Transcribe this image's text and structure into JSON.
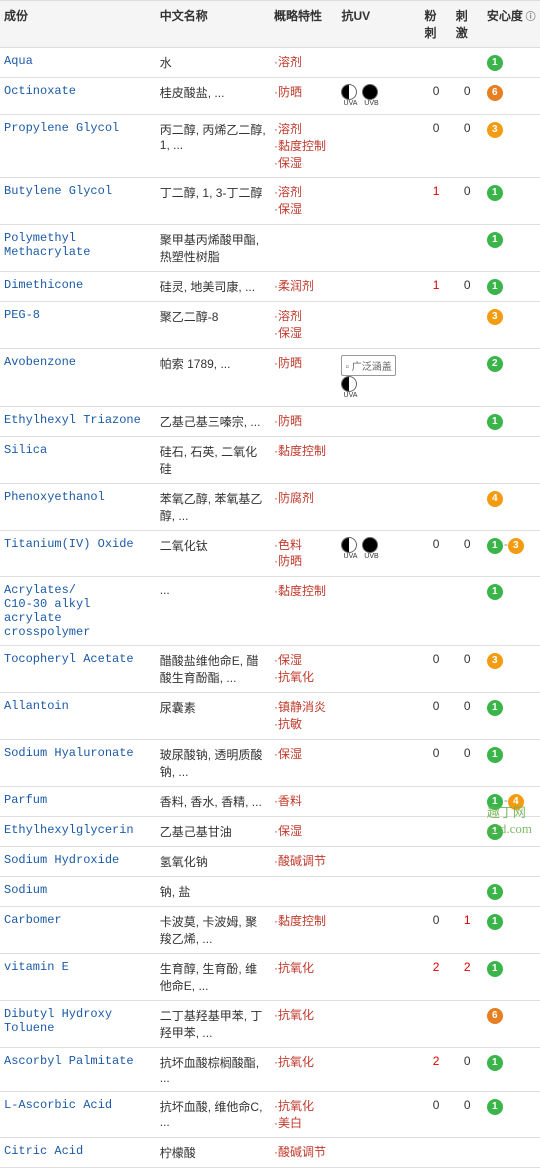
{
  "columns": [
    "成份",
    "中文名称",
    "概略特性",
    "抗UV",
    "粉刺",
    "刺激",
    "安心度"
  ],
  "watermark": "趣丁网\nq2d.com",
  "rows": [
    {
      "ing": "Aqua",
      "zh": "水",
      "char": [
        "溶剂"
      ],
      "uv": [],
      "come": "",
      "irr": "",
      "safety": [
        "1"
      ]
    },
    {
      "ing": "Octinoxate",
      "zh": "桂皮酸盐, ...",
      "char": [
        "防晒"
      ],
      "uv": [
        "half",
        "full"
      ],
      "come": "0",
      "irr": "0",
      "safety": [
        "6"
      ]
    },
    {
      "ing": "Propylene Glycol",
      "zh": "丙二醇, 丙烯乙二醇, 1, ...",
      "char": [
        "溶剂",
        "黏度控制",
        "保湿"
      ],
      "uv": [],
      "come": "0",
      "irr": "0",
      "safety": [
        "3"
      ]
    },
    {
      "ing": "Butylene Glycol",
      "zh": "丁二醇, 1, 3-丁二醇",
      "char": [
        "溶剂",
        "保湿"
      ],
      "uv": [],
      "come": "1",
      "come_red": true,
      "irr": "0",
      "safety": [
        "1"
      ]
    },
    {
      "ing": "Polymethyl Methacrylate",
      "zh": "聚甲基丙烯酸甲酯, 热塑性树脂",
      "char": [],
      "uv": [],
      "come": "",
      "irr": "",
      "safety": [
        "1"
      ]
    },
    {
      "ing": "Dimethicone",
      "zh": "硅灵, 地美司康, ...",
      "char": [
        "柔润剂"
      ],
      "uv": [],
      "come": "1",
      "come_red": true,
      "irr": "0",
      "safety": [
        "1"
      ]
    },
    {
      "ing": "PEG-8",
      "zh": "聚乙二醇-8",
      "char": [
        "溶剂",
        "保湿"
      ],
      "uv": [],
      "come": "",
      "irr": "",
      "safety": [
        "3"
      ]
    },
    {
      "ing": "Avobenzone",
      "zh": "帕索 1789, ...",
      "char": [
        "防晒"
      ],
      "uv": [
        "img",
        "half"
      ],
      "uvimg": "广泛涵盖",
      "come": "",
      "irr": "",
      "safety": [
        "2"
      ]
    },
    {
      "ing": "Ethylhexyl Triazone",
      "zh": "乙基己基三嗪宗, ...",
      "char": [
        "防晒"
      ],
      "uv": [],
      "come": "",
      "irr": "",
      "safety": [
        "1"
      ]
    },
    {
      "ing": "Silica",
      "zh": "硅石, 石英, 二氧化硅",
      "char": [
        "黏度控制"
      ],
      "uv": [],
      "come": "",
      "irr": "",
      "safety": []
    },
    {
      "ing": "Phenoxyethanol",
      "zh": "苯氧乙醇, 苯氧基乙醇, ...",
      "char": [
        "防腐剂"
      ],
      "uv": [],
      "come": "",
      "irr": "",
      "safety": [
        "4"
      ]
    },
    {
      "ing": "Titanium(IV) Oxide",
      "zh": "二氧化钛",
      "char": [
        "色料",
        "防晒"
      ],
      "uv": [
        "half",
        "full"
      ],
      "come": "0",
      "irr": "0",
      "safety": [
        "1",
        "3"
      ]
    },
    {
      "ing": "Acrylates/\nC10-30 alkyl acrylate crosspolymer",
      "zh": "...",
      "char": [
        "黏度控制"
      ],
      "uv": [],
      "come": "",
      "irr": "",
      "safety": [
        "1"
      ]
    },
    {
      "ing": "Tocopheryl Acetate",
      "zh": "醋酸盐维他命E, 醋酸生育酚酯, ...",
      "char": [
        "保湿",
        "抗氧化"
      ],
      "uv": [],
      "come": "0",
      "irr": "0",
      "safety": [
        "3"
      ]
    },
    {
      "ing": "Allantoin",
      "zh": "尿囊素",
      "char": [
        "镇静消炎",
        "抗敏"
      ],
      "uv": [],
      "come": "0",
      "irr": "0",
      "safety": [
        "1"
      ]
    },
    {
      "ing": "Sodium Hyaluronate",
      "zh": "玻尿酸钠, 透明质酸钠, ...",
      "char": [
        "保湿"
      ],
      "uv": [],
      "come": "0",
      "irr": "0",
      "safety": [
        "1"
      ]
    },
    {
      "ing": "Parfum",
      "zh": "香料, 香水, 香精, ...",
      "char": [
        "香料"
      ],
      "uv": [],
      "come": "",
      "irr": "",
      "safety": [
        "1",
        "4"
      ]
    },
    {
      "ing": "Ethylhexylglycerin",
      "zh": "乙基己基甘油",
      "char": [
        "保湿"
      ],
      "uv": [],
      "come": "",
      "irr": "",
      "safety": [
        "1"
      ]
    },
    {
      "ing": "Sodium Hydroxide",
      "zh": "氢氧化钠",
      "char": [
        "酸碱调节"
      ],
      "uv": [],
      "come": "",
      "irr": "",
      "safety": []
    },
    {
      "ing": "Sodium",
      "zh": "钠, 盐",
      "char": [],
      "uv": [],
      "come": "",
      "irr": "",
      "safety": [
        "1"
      ]
    },
    {
      "ing": "Carbomer",
      "zh": "卡波莫, 卡波姆, 聚羧乙烯, ...",
      "char": [
        "黏度控制"
      ],
      "uv": [],
      "come": "0",
      "irr": "1",
      "irr_red": true,
      "safety": [
        "1"
      ]
    },
    {
      "ing": "vitamin E",
      "zh": "生育醇, 生育酚, 维他命E, ...",
      "char": [
        "抗氧化"
      ],
      "uv": [],
      "come": "2",
      "come_red": true,
      "irr": "2",
      "irr_red": true,
      "safety": [
        "1"
      ]
    },
    {
      "ing": "Dibutyl Hydroxy Toluene",
      "zh": "二丁基羟基甲苯, 丁羟甲苯, ...",
      "char": [
        "抗氧化"
      ],
      "uv": [],
      "come": "",
      "irr": "",
      "safety": [
        "6"
      ]
    },
    {
      "ing": "Ascorbyl Palmitate",
      "zh": "抗坏血酸棕榈酸酯, ...",
      "char": [
        "抗氧化"
      ],
      "uv": [],
      "come": "2",
      "come_red": true,
      "irr": "0",
      "safety": [
        "1"
      ]
    },
    {
      "ing": "L-Ascorbic Acid",
      "zh": "抗坏血酸, 维他命C, ...",
      "char": [
        "抗氧化",
        "美白"
      ],
      "uv": [],
      "come": "0",
      "irr": "0",
      "safety": [
        "1"
      ]
    },
    {
      "ing": "Citric Acid",
      "zh": "柠檬酸",
      "char": [
        "酸碱调节"
      ],
      "uv": [],
      "come": "",
      "irr": "",
      "safety": []
    }
  ]
}
